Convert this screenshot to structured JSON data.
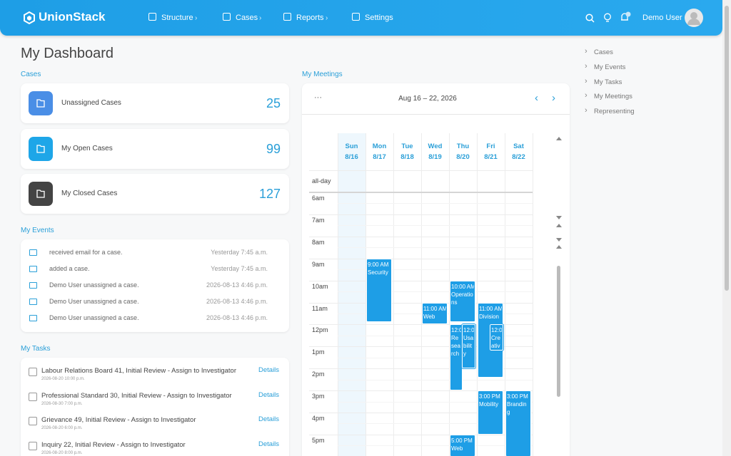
{
  "header": {
    "logo": "UnionStack",
    "nav": [
      "Structure",
      "Cases",
      "Reports",
      "Settings"
    ],
    "user": "Demo User"
  },
  "title": "My Dashboard",
  "cases": {
    "heading": "Cases",
    "items": [
      {
        "label": "Unassigned Cases",
        "count": 25
      },
      {
        "label": "My Open Cases",
        "count": 99
      },
      {
        "label": "My Closed Cases",
        "count": 127
      }
    ]
  },
  "events": {
    "heading": "My Events",
    "items": [
      {
        "text": "received email for a case.",
        "time": "Yesterday 7:45 a.m."
      },
      {
        "text": "added a case.",
        "time": "Yesterday 7:45 a.m."
      },
      {
        "text": "Demo User unassigned a case.",
        "time": "2026-08-13 4:46 p.m."
      },
      {
        "text": "Demo User unassigned a case.",
        "time": "2026-08-13 4:46 p.m."
      },
      {
        "text": "Demo User unassigned a case.",
        "time": "2026-08-13 4:46 p.m."
      }
    ]
  },
  "tasks": {
    "heading": "My Tasks",
    "items": [
      {
        "title": "Labour Relations Board 41, Initial Review - Assign to Investigator",
        "date": "2026-08-20 10:00 p.m.",
        "action": "Details"
      },
      {
        "title": "Professional Standard 30, Initial Review - Assign to Investigator",
        "date": "2026-08-30 7:00 p.m.",
        "action": "Details"
      },
      {
        "title": "Grievance 49, Initial Review - Assign to Investigator",
        "date": "2026-08-20 6:00 p.m.",
        "action": "Details"
      },
      {
        "title": "Inquiry 22, Initial Review - Assign to Investigator",
        "date": "2026-08-20 8:00 p.m.",
        "action": "Details"
      }
    ]
  },
  "meetings": {
    "heading": "My Meetings",
    "more": "···",
    "range": "Aug 16 – 22, 2026",
    "prev": "‹",
    "next": "›",
    "days": [
      {
        "name": "Sun",
        "date": "8/16"
      },
      {
        "name": "Mon",
        "date": "8/17"
      },
      {
        "name": "Tue",
        "date": "8/18"
      },
      {
        "name": "Wed",
        "date": "8/19"
      },
      {
        "name": "Thu",
        "date": "8/20"
      },
      {
        "name": "Fri",
        "date": "8/21"
      },
      {
        "name": "Sat",
        "date": "8/22"
      }
    ],
    "allday": "all-day",
    "hours": [
      "6am",
      "7am",
      "8am",
      "9am",
      "10am",
      "11am",
      "12pm",
      "1pm",
      "2pm",
      "3pm",
      "4pm",
      "5pm"
    ],
    "events": [
      {
        "time": "9:00 AM -",
        "title": "Security"
      },
      {
        "time": "11:00 AM",
        "title": "Web"
      },
      {
        "time": "10:00 AM",
        "title": "Operations"
      },
      {
        "time": "12:00",
        "title": "Research"
      },
      {
        "time": "12:00",
        "title": "Usability"
      },
      {
        "time": "11:00 AM",
        "title": "Division"
      },
      {
        "time": "12:00",
        "title": "Creativ"
      },
      {
        "time": "3:00 PM -",
        "title": "Mobility"
      },
      {
        "time": "3:00 PM -",
        "title": "Branding"
      },
      {
        "time": "5:00 PM -",
        "title": "Web"
      }
    ]
  },
  "sidebar": [
    "Cases",
    "My Events",
    "My Tasks",
    "My Meetings",
    "Representing"
  ]
}
